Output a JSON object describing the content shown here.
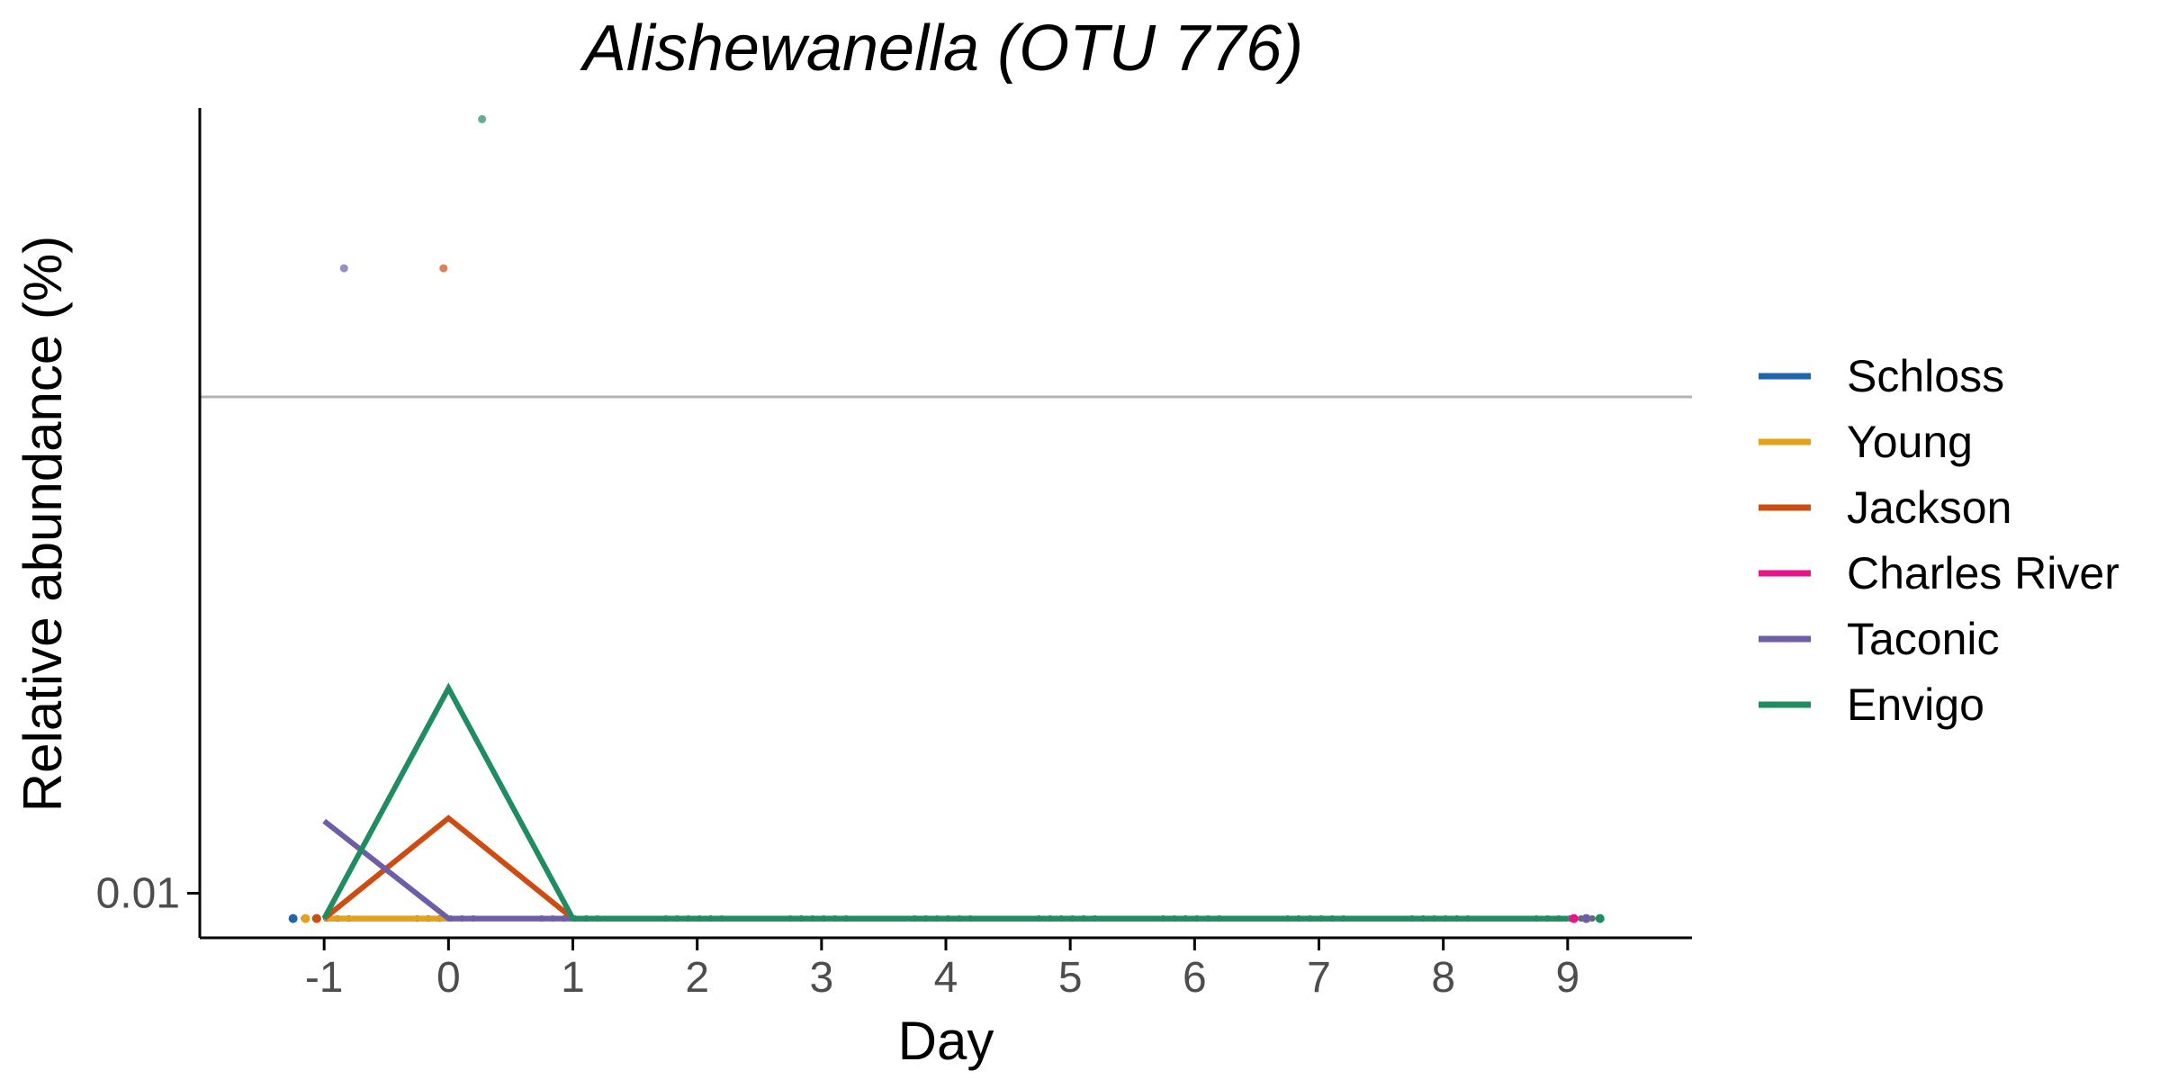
{
  "chart_data": {
    "type": "line",
    "title": "Alishewanella (OTU 776)",
    "xlabel": "Day",
    "ylabel": "Relative abundance (%)",
    "x_ticks": [
      -1,
      0,
      1,
      2,
      3,
      4,
      5,
      6,
      7,
      8,
      9
    ],
    "x_tick_labels": [
      "-1",
      "0",
      "1",
      "2",
      "3",
      "4",
      "5",
      "6",
      "7",
      "8",
      "9"
    ],
    "xlim": [
      -2,
      10
    ],
    "y_scale": "log",
    "y_ticks": [
      0.01
    ],
    "y_tick_labels": [
      "0.01"
    ],
    "ylim": [
      0.0088,
      0.095
    ],
    "limit_of_detection": 0.0415,
    "legend_position": "right",
    "grid": false,
    "series": [
      {
        "name": "Schloss",
        "color": "#2166ac",
        "x": [
          -1,
          0,
          1,
          2,
          3,
          4,
          5,
          6,
          7,
          8,
          9
        ],
        "y": [
          0.0093,
          0.0093,
          0.0093,
          0.0093,
          0.0093,
          0.0093,
          0.0093,
          0.0093,
          0.0093,
          0.0093,
          0.0093
        ]
      },
      {
        "name": "Young",
        "color": "#e6a11a",
        "x": [
          -1,
          0,
          1,
          2,
          3,
          4,
          5,
          6,
          7,
          8,
          9
        ],
        "y": [
          0.0093,
          0.0093,
          0.0093,
          0.0093,
          0.0093,
          0.0093,
          0.0093,
          0.0093,
          0.0093,
          0.0093,
          0.0093
        ]
      },
      {
        "name": "Jackson",
        "color": "#cc4c12",
        "x": [
          -1,
          0,
          1,
          2,
          3,
          4,
          5,
          6,
          7,
          8,
          9
        ],
        "y": [
          0.0093,
          0.0124,
          0.0093,
          0.0093,
          0.0093,
          0.0093,
          0.0093,
          0.0093,
          0.0093,
          0.0093,
          0.0093
        ]
      },
      {
        "name": "Charles River",
        "color": "#e7158a",
        "x": [
          -1,
          0,
          1,
          2,
          3,
          4,
          5,
          6,
          7,
          8,
          9
        ],
        "y": [
          0.0093,
          0.0093,
          0.0093,
          0.0093,
          0.0093,
          0.0093,
          0.0093,
          0.0093,
          0.0093,
          0.0093,
          0.0093
        ]
      },
      {
        "name": "Taconic",
        "color": "#6e5ea8",
        "x": [
          -1,
          0,
          1,
          2,
          3,
          4,
          5,
          6,
          7,
          8,
          9
        ],
        "y": [
          0.0123,
          0.0093,
          0.0093,
          0.0093,
          0.0093,
          0.0093,
          0.0093,
          0.0093,
          0.0093,
          0.0093,
          0.0093
        ]
      },
      {
        "name": "Envigo",
        "color": "#1f8c62",
        "x": [
          -1,
          0,
          1,
          2,
          3,
          4,
          5,
          6,
          7,
          8,
          9
        ],
        "y": [
          0.0093,
          0.018,
          0.0093,
          0.0093,
          0.0093,
          0.0093,
          0.0093,
          0.0093,
          0.0093,
          0.0093,
          0.0093
        ]
      }
    ],
    "outlier_points": [
      {
        "series": "Envigo",
        "x": 0.27,
        "y": 0.092
      },
      {
        "series": "Taconic",
        "x": -0.84,
        "y": 0.06
      },
      {
        "series": "Jackson",
        "x": -0.04,
        "y": 0.06
      }
    ]
  }
}
